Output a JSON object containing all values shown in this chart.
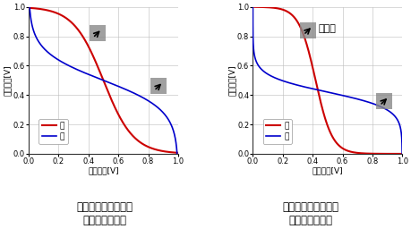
{
  "title1": "製造条件最適化前の\nバタフライ特性",
  "title2": "製造条件最適化後の\nバタフライ特性",
  "xlabel": "入力電圧[V]",
  "ylabel": "出力電圧[V]",
  "legend_left": "左",
  "legend_right": "右",
  "xlim": [
    0,
    1
  ],
  "ylim": [
    0,
    1
  ],
  "xticks": [
    0,
    0.2,
    0.4,
    0.6,
    0.8,
    1
  ],
  "yticks": [
    0,
    0.2,
    0.4,
    0.6,
    0.8,
    1
  ],
  "red_color": "#cc0000",
  "blue_color": "#0000cc",
  "background": "#ffffff",
  "stability_text": "安定性",
  "title_fontsize": 8.5,
  "axis_fontsize": 6.5,
  "tick_fontsize": 6,
  "legend_fontsize": 6.5,
  "before_red_steepness": 10,
  "before_red_shift": 0.5,
  "before_blue_steepness": 10,
  "before_blue_shift": 0.5,
  "after_red_steepness": 18,
  "after_red_shift": 0.42,
  "after_blue_steepness": 18,
  "after_blue_shift": 0.42,
  "arrow1_before": [
    0.46,
    0.82
  ],
  "arrow2_before": [
    0.87,
    0.46
  ],
  "arrow1_after": [
    0.37,
    0.84
  ],
  "arrow2_after": [
    0.88,
    0.36
  ]
}
